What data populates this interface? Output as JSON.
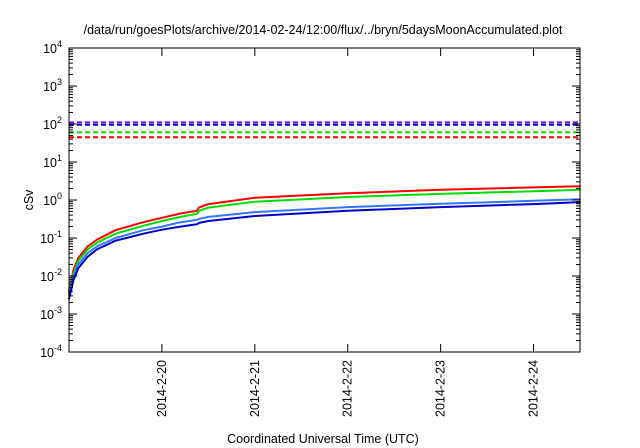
{
  "chart_data": {
    "type": "line",
    "title": "/data/run/goesPlots/archive/2014-02-24/12:00/flux/../bryn/5daysMoonAccumulated.plot",
    "xlabel": "Coordinated Universal Time (UTC)",
    "ylabel": "cSv",
    "y_scale": "log",
    "ylim": [
      0.0001,
      10000
    ],
    "xlim": [
      "2014-02-19 00:00",
      "2014-02-24 12:00"
    ],
    "x_ticks": [
      "2014-2-20",
      "2014-2-21",
      "2014-2-22",
      "2014-2-23",
      "2014-2-24"
    ],
    "y_ticks": [
      {
        "value": 0.0001,
        "base": "10",
        "exp": "-4"
      },
      {
        "value": 0.001,
        "base": "10",
        "exp": "-3"
      },
      {
        "value": 0.01,
        "base": "10",
        "exp": "-2"
      },
      {
        "value": 0.1,
        "base": "10",
        "exp": "-1"
      },
      {
        "value": 1,
        "base": "10",
        "exp": "0"
      },
      {
        "value": 10,
        "base": "10",
        "exp": "1"
      },
      {
        "value": 100,
        "base": "10",
        "exp": "2"
      },
      {
        "value": 1000,
        "base": "10",
        "exp": "3"
      },
      {
        "value": 10000,
        "base": "10",
        "exp": "4"
      }
    ],
    "grid": false,
    "legend": "none",
    "series": [
      {
        "color": "#ff0000",
        "style": "solid",
        "x": [
          "2014-02-19 00:00",
          "2014-02-19 01:12",
          "2014-02-19 02:24",
          "2014-02-19 04:48",
          "2014-02-19 07:12",
          "2014-02-19 12:00",
          "2014-02-19 19:12",
          "2014-02-20 00:00",
          "2014-02-20 04:48",
          "2014-02-20 09:00",
          "2014-02-20 09:36",
          "2014-02-20 12:00",
          "2014-02-21 00:00",
          "2014-02-22 00:00",
          "2014-02-23 00:00",
          "2014-02-24 00:00",
          "2014-02-24 12:00"
        ],
        "y": [
          0.004,
          0.015,
          0.03,
          0.06,
          0.09,
          0.16,
          0.26,
          0.34,
          0.44,
          0.52,
          0.64,
          0.78,
          1.15,
          1.5,
          1.85,
          2.15,
          2.3
        ]
      },
      {
        "color": "#00dd00",
        "style": "solid",
        "x": [
          "2014-02-19 00:00",
          "2014-02-19 01:12",
          "2014-02-19 02:24",
          "2014-02-19 04:48",
          "2014-02-19 07:12",
          "2014-02-19 12:00",
          "2014-02-19 19:12",
          "2014-02-20 00:00",
          "2014-02-20 04:48",
          "2014-02-20 09:00",
          "2014-02-20 09:36",
          "2014-02-20 12:00",
          "2014-02-21 00:00",
          "2014-02-22 00:00",
          "2014-02-23 00:00",
          "2014-02-24 00:00",
          "2014-02-24 12:00"
        ],
        "y": [
          0.0035,
          0.012,
          0.025,
          0.05,
          0.075,
          0.13,
          0.21,
          0.28,
          0.36,
          0.43,
          0.52,
          0.63,
          0.9,
          1.2,
          1.45,
          1.7,
          1.85
        ]
      },
      {
        "color": "#3377ff",
        "style": "solid",
        "x": [
          "2014-02-19 00:00",
          "2014-02-19 01:12",
          "2014-02-19 02:24",
          "2014-02-19 04:48",
          "2014-02-19 07:12",
          "2014-02-19 12:00",
          "2014-02-19 19:12",
          "2014-02-20 00:00",
          "2014-02-20 04:48",
          "2014-02-20 09:00",
          "2014-02-20 09:36",
          "2014-02-20 12:00",
          "2014-02-21 00:00",
          "2014-02-22 00:00",
          "2014-02-23 00:00",
          "2014-02-24 00:00",
          "2014-02-24 12:00"
        ],
        "y": [
          0.003,
          0.01,
          0.02,
          0.04,
          0.06,
          0.1,
          0.16,
          0.2,
          0.26,
          0.3,
          0.32,
          0.36,
          0.48,
          0.65,
          0.8,
          0.95,
          1.05
        ]
      },
      {
        "color": "#0000cc",
        "style": "solid",
        "x": [
          "2014-02-19 00:00",
          "2014-02-19 01:12",
          "2014-02-19 02:24",
          "2014-02-19 04:48",
          "2014-02-19 07:12",
          "2014-02-19 12:00",
          "2014-02-19 19:12",
          "2014-02-20 00:00",
          "2014-02-20 04:48",
          "2014-02-20 09:00",
          "2014-02-20 09:36",
          "2014-02-20 12:00",
          "2014-02-21 00:00",
          "2014-02-22 00:00",
          "2014-02-23 00:00",
          "2014-02-24 00:00",
          "2014-02-24 12:00"
        ],
        "y": [
          0.0025,
          0.008,
          0.016,
          0.032,
          0.05,
          0.085,
          0.13,
          0.165,
          0.2,
          0.23,
          0.25,
          0.28,
          0.38,
          0.52,
          0.65,
          0.78,
          0.88
        ]
      },
      {
        "color": "#8800ff",
        "style": "dashed",
        "x": [
          "2014-02-19 00:00",
          "2014-02-24 12:00"
        ],
        "y": [
          110,
          110
        ]
      },
      {
        "color": "#0000cc",
        "style": "dashed",
        "x": [
          "2014-02-19 00:00",
          "2014-02-24 12:00"
        ],
        "y": [
          95,
          95
        ]
      },
      {
        "color": "#00dd00",
        "style": "dashed",
        "x": [
          "2014-02-19 00:00",
          "2014-02-24 12:00"
        ],
        "y": [
          60,
          60
        ]
      },
      {
        "color": "#ff0000",
        "style": "dashed",
        "x": [
          "2014-02-19 00:00",
          "2014-02-24 12:00"
        ],
        "y": [
          45,
          45
        ]
      }
    ]
  }
}
